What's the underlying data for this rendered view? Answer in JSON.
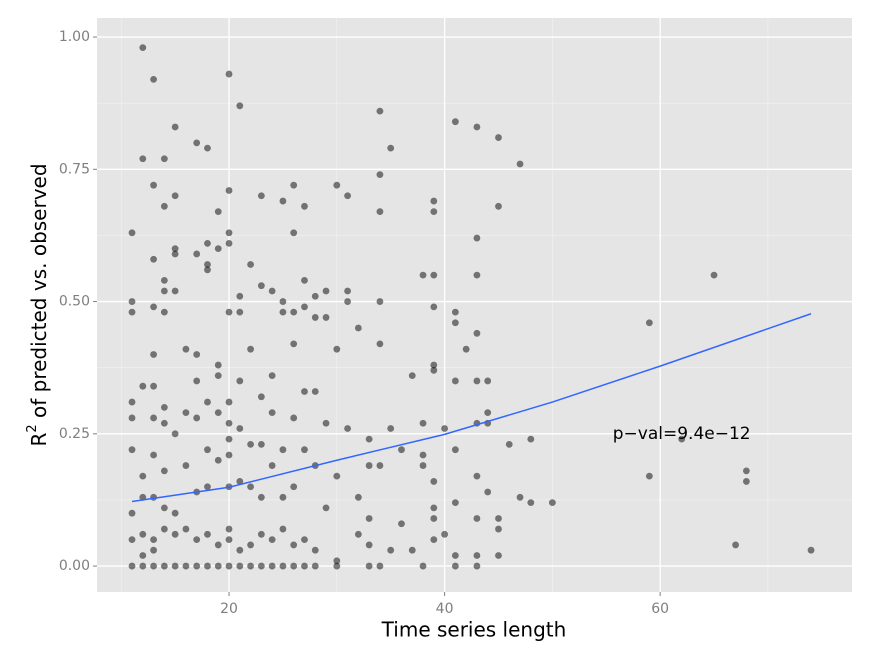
{
  "chart_data": {
    "type": "scatter",
    "xlabel": "Time series length",
    "ylabel": {
      "base": "R",
      "sup": "2",
      "rest": " of predicted vs. observed"
    },
    "annotation": {
      "text": "p−val=9.4e−12",
      "x": 62,
      "y": 0.25
    },
    "xlim": [
      7.75,
      77.8
    ],
    "ylim": [
      -0.049,
      1.036
    ],
    "xticks": [
      20,
      40,
      60
    ],
    "yticks": [
      {
        "value": 0,
        "label": "0.00"
      },
      {
        "value": 0.25,
        "label": "0.25"
      },
      {
        "value": 0.5,
        "label": "0.50"
      },
      {
        "value": 0.75,
        "label": "0.75"
      },
      {
        "value": 1,
        "label": "1.00"
      }
    ],
    "x_minor_grid": [
      10,
      30,
      50,
      70
    ],
    "y_minor_grid": [
      0.125,
      0.375,
      0.625,
      0.875
    ],
    "grid": true,
    "point_color": "#000000",
    "fit": {
      "color": "#3366ff",
      "x": [
        11,
        20,
        30,
        40,
        50,
        60,
        74
      ],
      "y": [
        0.122,
        0.149,
        0.2,
        0.249,
        0.31,
        0.378,
        0.477
      ]
    },
    "x": [
      12,
      13,
      20,
      21,
      15,
      17,
      18,
      12,
      14,
      13,
      15,
      14,
      19,
      20,
      23,
      25,
      26,
      27,
      30,
      31,
      34,
      35,
      34,
      34,
      41,
      43,
      45,
      47,
      39,
      39,
      45,
      11,
      15,
      15,
      17,
      18,
      19,
      20,
      20,
      22,
      26,
      18,
      18,
      13,
      14,
      14,
      15,
      24,
      27,
      28,
      29,
      31,
      31,
      21,
      23,
      38,
      39,
      43,
      43,
      65,
      11,
      11,
      13,
      14,
      20,
      21,
      25,
      25,
      26,
      27,
      28,
      29,
      32,
      34,
      39,
      41,
      41,
      42,
      43,
      59,
      16,
      17,
      13,
      19,
      22,
      26,
      30,
      34,
      37,
      39,
      39,
      41,
      43,
      44,
      17,
      19,
      21,
      24,
      27,
      28,
      23,
      20,
      18,
      12,
      13,
      14,
      11,
      11,
      13,
      14,
      15,
      16,
      17,
      19,
      20,
      21,
      24,
      26,
      29,
      31,
      33,
      35,
      38,
      40,
      43,
      44,
      44,
      46,
      48,
      62,
      11,
      12,
      13,
      14,
      16,
      18,
      19,
      20,
      20,
      22,
      23,
      24,
      25,
      27,
      28,
      30,
      33,
      34,
      36,
      38,
      38,
      39,
      41,
      43,
      44,
      47,
      48,
      50,
      59,
      68,
      68,
      11,
      12,
      13,
      14,
      15,
      17,
      18,
      20,
      21,
      22,
      23,
      25,
      26,
      29,
      32,
      33,
      36,
      39,
      39,
      41,
      43,
      45,
      45,
      11,
      12,
      12,
      13,
      13,
      14,
      15,
      16,
      17,
      18,
      19,
      20,
      20,
      21,
      22,
      23,
      24,
      25,
      26,
      27,
      28,
      30,
      32,
      33,
      35,
      37,
      39,
      40,
      41,
      43,
      45,
      67,
      74,
      11,
      12,
      13,
      14,
      15,
      16,
      17,
      18,
      19,
      20,
      21,
      22,
      23,
      24,
      25,
      26,
      27,
      28,
      30,
      33,
      34,
      38,
      41,
      43
    ],
    "y": [
      0.98,
      0.92,
      0.93,
      0.87,
      0.83,
      0.8,
      0.79,
      0.77,
      0.77,
      0.72,
      0.7,
      0.68,
      0.67,
      0.71,
      0.7,
      0.69,
      0.72,
      0.68,
      0.72,
      0.7,
      0.86,
      0.79,
      0.74,
      0.67,
      0.84,
      0.83,
      0.81,
      0.76,
      0.69,
      0.67,
      0.68,
      0.63,
      0.6,
      0.59,
      0.59,
      0.61,
      0.6,
      0.63,
      0.61,
      0.57,
      0.63,
      0.57,
      0.56,
      0.58,
      0.54,
      0.52,
      0.52,
      0.52,
      0.54,
      0.51,
      0.52,
      0.52,
      0.5,
      0.51,
      0.53,
      0.55,
      0.55,
      0.62,
      0.55,
      0.55,
      0.5,
      0.48,
      0.49,
      0.48,
      0.48,
      0.48,
      0.5,
      0.48,
      0.48,
      0.49,
      0.47,
      0.47,
      0.45,
      0.5,
      0.49,
      0.48,
      0.46,
      0.41,
      0.44,
      0.46,
      0.41,
      0.4,
      0.4,
      0.38,
      0.41,
      0.42,
      0.41,
      0.42,
      0.36,
      0.38,
      0.37,
      0.35,
      0.35,
      0.35,
      0.35,
      0.36,
      0.35,
      0.36,
      0.33,
      0.33,
      0.32,
      0.31,
      0.31,
      0.34,
      0.34,
      0.3,
      0.31,
      0.28,
      0.28,
      0.27,
      0.25,
      0.29,
      0.28,
      0.29,
      0.27,
      0.26,
      0.29,
      0.28,
      0.27,
      0.26,
      0.24,
      0.26,
      0.27,
      0.26,
      0.27,
      0.27,
      0.29,
      0.23,
      0.24,
      0.24,
      0.22,
      0.17,
      0.21,
      0.18,
      0.19,
      0.22,
      0.2,
      0.24,
      0.21,
      0.23,
      0.23,
      0.19,
      0.22,
      0.22,
      0.19,
      0.17,
      0.19,
      0.19,
      0.22,
      0.21,
      0.19,
      0.16,
      0.22,
      0.17,
      0.14,
      0.13,
      0.12,
      0.12,
      0.17,
      0.18,
      0.16,
      0.1,
      0.13,
      0.13,
      0.11,
      0.1,
      0.14,
      0.15,
      0.15,
      0.16,
      0.15,
      0.13,
      0.13,
      0.15,
      0.11,
      0.13,
      0.09,
      0.08,
      0.09,
      0.11,
      0.12,
      0.09,
      0.09,
      0.07,
      0.05,
      0.06,
      0.02,
      0.05,
      0.03,
      0.07,
      0.06,
      0.07,
      0.05,
      0.06,
      0.04,
      0.07,
      0.05,
      0.03,
      0.04,
      0.06,
      0.05,
      0.07,
      0.04,
      0.05,
      0.03,
      0.01,
      0.06,
      0.04,
      0.03,
      0.03,
      0.05,
      0.06,
      0.02,
      0.02,
      0.02,
      0.04,
      0.03,
      0,
      0,
      0,
      0,
      0,
      0,
      0,
      0,
      0,
      0,
      0,
      0,
      0,
      0,
      0,
      0,
      0,
      0,
      0,
      0,
      0,
      0,
      0,
      0
    ]
  }
}
